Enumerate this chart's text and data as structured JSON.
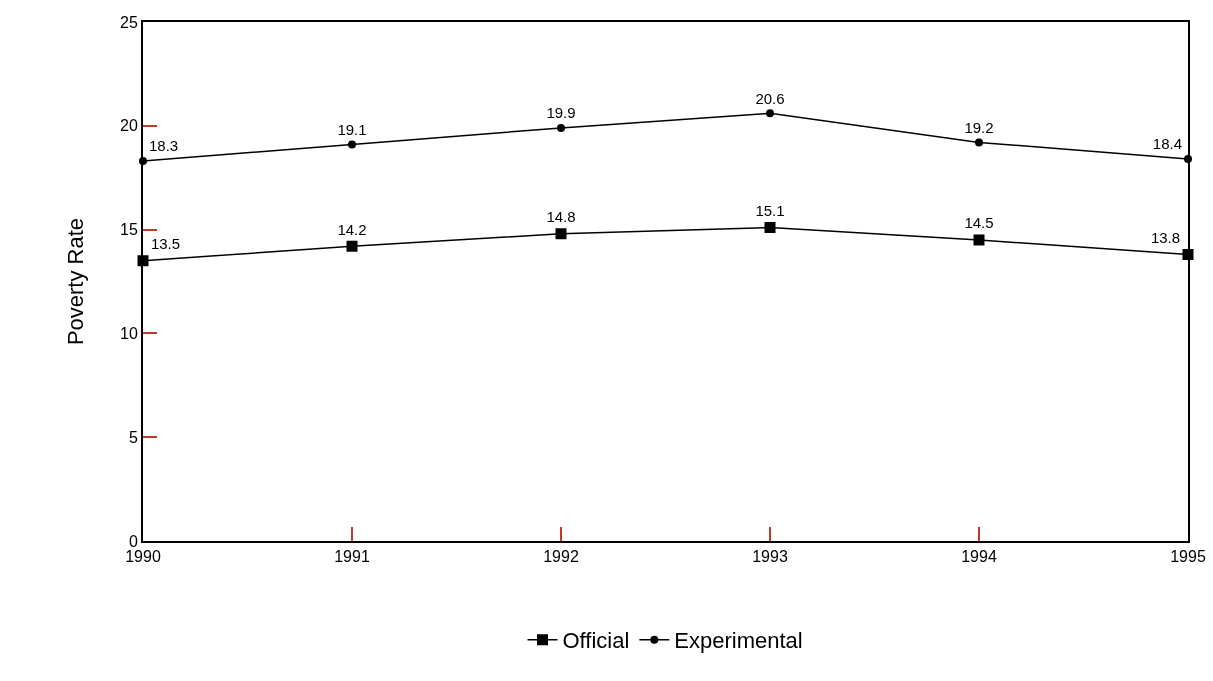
{
  "chart_data": {
    "type": "line",
    "ylabel": "Poverty Rate",
    "x": [
      1990,
      1991,
      1992,
      1993,
      1994,
      1995
    ],
    "series": [
      {
        "name": "Official",
        "color": "#000000",
        "marker": "square",
        "values": [
          13.5,
          14.2,
          14.8,
          15.1,
          14.5,
          13.8
        ]
      },
      {
        "name": "Experimental",
        "color": "#000000",
        "marker": "circle",
        "values": [
          18.3,
          19.1,
          19.9,
          20.6,
          19.2,
          18.4
        ]
      }
    ],
    "xlim": [
      1990,
      1995
    ],
    "xticks": [
      1990,
      1991,
      1992,
      1993,
      1994,
      1995
    ],
    "ylim": [
      0,
      25
    ],
    "yticks": [
      0,
      5,
      10,
      15,
      20,
      25
    ],
    "grid": false,
    "legend": "bottom",
    "data_labels": true,
    "line_style": "solid"
  }
}
